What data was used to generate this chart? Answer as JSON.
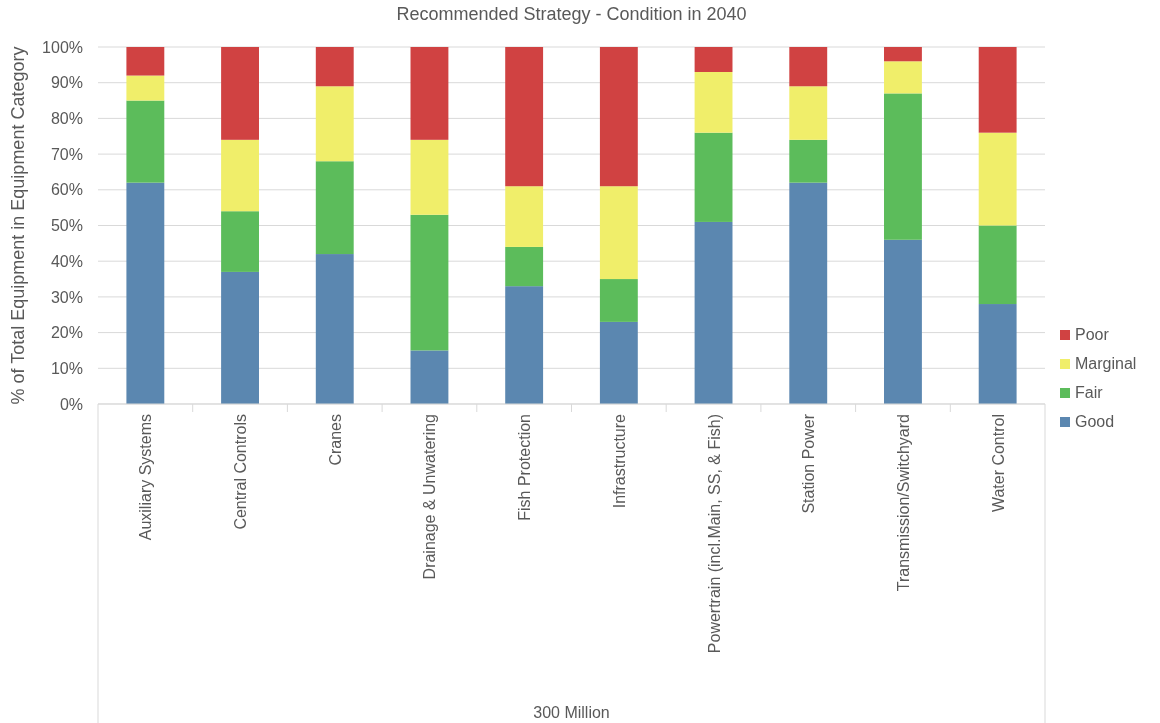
{
  "chart_data": {
    "type": "bar",
    "stacked": true,
    "title": "Recommended Strategy - Condition in 2040",
    "ylabel": "% of Total Equipment in Equipment Category",
    "xlabel": "300 Million",
    "categories": [
      "Auxiliary Systems",
      "Central Controls",
      "Cranes",
      "Drainage & Unwatering",
      "Fish Protection",
      "Infrastructure",
      "Powertrain (incl.Main, SS, & Fish)",
      "Station Power",
      "Transmission/Switchyard",
      "Water Control"
    ],
    "series": [
      {
        "name": "Good",
        "color": "#5b87b0",
        "values": [
          62,
          37,
          42,
          15,
          33,
          23,
          51,
          62,
          46,
          28
        ]
      },
      {
        "name": "Fair",
        "color": "#5cbc5b",
        "values": [
          23,
          17,
          26,
          38,
          11,
          12,
          25,
          12,
          41,
          22
        ]
      },
      {
        "name": "Marginal",
        "color": "#f0ee6a",
        "values": [
          7,
          20,
          21,
          21,
          17,
          26,
          17,
          15,
          9,
          26
        ]
      },
      {
        "name": "Poor",
        "color": "#d04242",
        "values": [
          8,
          26,
          11,
          26,
          39,
          39,
          7,
          11,
          4,
          24
        ]
      }
    ],
    "ylim": [
      0,
      100
    ],
    "yticks": [
      {
        "value": 0,
        "label": "0%"
      },
      {
        "value": 10,
        "label": "10%"
      },
      {
        "value": 20,
        "label": "20%"
      },
      {
        "value": 30,
        "label": "30%"
      },
      {
        "value": 40,
        "label": "40%"
      },
      {
        "value": 50,
        "label": "50%"
      },
      {
        "value": 60,
        "label": "60%"
      },
      {
        "value": 70,
        "label": "70%"
      },
      {
        "value": 80,
        "label": "80%"
      },
      {
        "value": 90,
        "label": "90%"
      },
      {
        "value": 100,
        "label": "100%"
      }
    ],
    "grid": "y",
    "legend": "right"
  }
}
